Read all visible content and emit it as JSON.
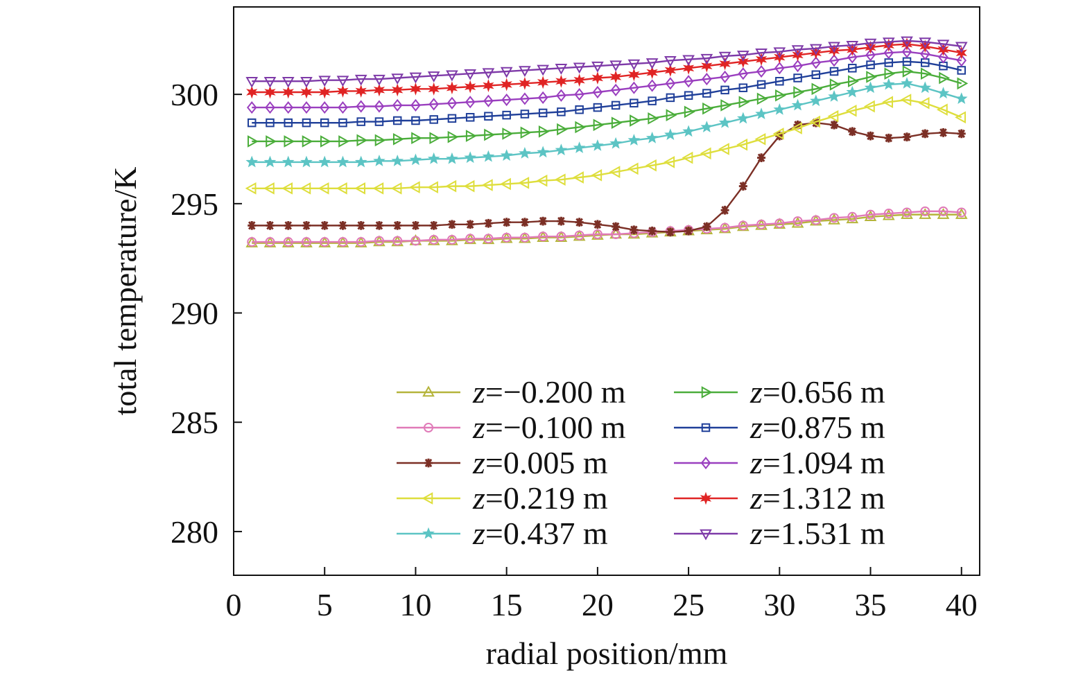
{
  "chart_data": {
    "type": "line",
    "title": "",
    "xlabel": "radial position/mm",
    "ylabel": "total temperature/K",
    "xlim": [
      0,
      41
    ],
    "ylim": [
      278,
      304
    ],
    "x_ticks": [
      0,
      5,
      10,
      15,
      20,
      25,
      30,
      35,
      40
    ],
    "y_ticks": [
      280,
      285,
      290,
      295,
      300
    ],
    "grid": false,
    "legend_position": "bottom-right, two columns",
    "x": [
      1,
      2,
      3,
      4,
      5,
      6,
      7,
      8,
      9,
      10,
      11,
      12,
      13,
      14,
      15,
      16,
      17,
      18,
      19,
      20,
      21,
      22,
      23,
      24,
      25,
      26,
      27,
      28,
      29,
      30,
      31,
      32,
      33,
      34,
      35,
      36,
      37,
      38,
      39,
      40
    ],
    "series": [
      {
        "name": "z=−0.200 m",
        "name_var": "z",
        "name_value": "=−0.200 m",
        "color": "#b5b43a",
        "marker": "triangle-up",
        "values": [
          293.2,
          293.2,
          293.2,
          293.2,
          293.2,
          293.2,
          293.2,
          293.25,
          293.25,
          293.3,
          293.3,
          293.3,
          293.35,
          293.35,
          293.4,
          293.4,
          293.45,
          293.45,
          293.5,
          293.55,
          293.6,
          293.6,
          293.65,
          293.7,
          293.75,
          293.8,
          293.85,
          293.95,
          294.0,
          294.05,
          294.1,
          294.2,
          294.25,
          294.3,
          294.4,
          294.45,
          294.5,
          294.5,
          294.5,
          294.5
        ]
      },
      {
        "name": "z=−0.100 m",
        "name_var": "z",
        "name_value": "=−0.100 m",
        "color": "#e07ab8",
        "marker": "circle",
        "values": [
          293.25,
          293.25,
          293.25,
          293.25,
          293.25,
          293.25,
          293.25,
          293.3,
          293.3,
          293.3,
          293.35,
          293.35,
          293.4,
          293.4,
          293.45,
          293.45,
          293.5,
          293.5,
          293.55,
          293.6,
          293.6,
          293.65,
          293.7,
          293.75,
          293.8,
          293.85,
          293.9,
          294.0,
          294.05,
          294.1,
          294.2,
          294.25,
          294.35,
          294.4,
          294.5,
          294.55,
          294.6,
          294.65,
          294.65,
          294.6
        ]
      },
      {
        "name": "z=0.005 m",
        "name_var": "z",
        "name_value": "=0.005 m",
        "color": "#7b2f25",
        "marker": "asterisk",
        "values": [
          294.0,
          294.0,
          294.0,
          294.0,
          294.0,
          294.0,
          294.0,
          294.0,
          294.0,
          294.0,
          294.0,
          294.05,
          294.05,
          294.1,
          294.15,
          294.15,
          294.2,
          294.2,
          294.15,
          294.05,
          293.95,
          293.8,
          293.75,
          293.7,
          293.75,
          293.95,
          294.7,
          295.8,
          297.1,
          298.1,
          298.6,
          298.7,
          298.6,
          298.3,
          298.1,
          298.0,
          298.05,
          298.2,
          298.25,
          298.2
        ]
      },
      {
        "name": "z=0.219 m",
        "name_var": "z",
        "name_value": "=0.219 m",
        "color": "#dede3c",
        "marker": "triangle-left",
        "values": [
          295.7,
          295.7,
          295.7,
          295.7,
          295.7,
          295.7,
          295.7,
          295.7,
          295.7,
          295.75,
          295.75,
          295.8,
          295.8,
          295.85,
          295.9,
          295.95,
          296.05,
          296.1,
          296.2,
          296.3,
          296.45,
          296.6,
          296.75,
          296.9,
          297.1,
          297.3,
          297.5,
          297.7,
          297.95,
          298.2,
          298.45,
          298.75,
          299.0,
          299.25,
          299.45,
          299.65,
          299.75,
          299.6,
          299.3,
          298.95
        ]
      },
      {
        "name": "z=0.437 m",
        "name_var": "z",
        "name_value": "=0.437 m",
        "color": "#5cc4c4",
        "marker": "star",
        "values": [
          296.9,
          296.9,
          296.9,
          296.9,
          296.9,
          296.9,
          296.9,
          296.95,
          296.95,
          297.0,
          297.05,
          297.05,
          297.1,
          297.15,
          297.2,
          297.3,
          297.35,
          297.45,
          297.55,
          297.65,
          297.75,
          297.9,
          298.0,
          298.15,
          298.3,
          298.5,
          298.7,
          298.9,
          299.1,
          299.3,
          299.5,
          299.7,
          299.9,
          300.1,
          300.3,
          300.45,
          300.5,
          300.3,
          300.05,
          299.8
        ]
      },
      {
        "name": "z=0.656 m",
        "name_var": "z",
        "name_value": "=0.656 m",
        "color": "#4aad3a",
        "marker": "triangle-right",
        "values": [
          297.85,
          297.85,
          297.85,
          297.85,
          297.85,
          297.85,
          297.9,
          297.9,
          297.95,
          298.0,
          298.0,
          298.05,
          298.1,
          298.15,
          298.2,
          298.25,
          298.3,
          298.4,
          298.5,
          298.6,
          298.7,
          298.8,
          298.9,
          299.05,
          299.2,
          299.35,
          299.5,
          299.65,
          299.8,
          299.95,
          300.1,
          300.25,
          300.45,
          300.6,
          300.8,
          300.95,
          301.05,
          300.95,
          300.75,
          300.5
        ]
      },
      {
        "name": "z=0.875 m",
        "name_var": "z",
        "name_value": "=0.875 m",
        "color": "#1f3f99",
        "marker": "square",
        "values": [
          298.7,
          298.7,
          298.7,
          298.7,
          298.7,
          298.7,
          298.75,
          298.75,
          298.8,
          298.8,
          298.85,
          298.9,
          298.95,
          299.0,
          299.05,
          299.1,
          299.15,
          299.2,
          299.3,
          299.4,
          299.5,
          299.6,
          299.7,
          299.85,
          299.95,
          300.05,
          300.2,
          300.3,
          300.45,
          300.6,
          300.75,
          300.9,
          301.05,
          301.2,
          301.35,
          301.45,
          301.5,
          301.45,
          301.3,
          301.1
        ]
      },
      {
        "name": "z=1.094 m",
        "name_var": "z",
        "name_value": "=1.094 m",
        "color": "#9a3fbf",
        "marker": "diamond",
        "values": [
          299.4,
          299.4,
          299.4,
          299.4,
          299.4,
          299.4,
          299.45,
          299.45,
          299.5,
          299.5,
          299.55,
          299.6,
          299.65,
          299.7,
          299.75,
          299.8,
          299.85,
          299.95,
          300.0,
          300.1,
          300.2,
          300.3,
          300.4,
          300.5,
          300.6,
          300.7,
          300.8,
          300.95,
          301.05,
          301.2,
          301.3,
          301.45,
          301.55,
          301.7,
          301.8,
          301.9,
          301.95,
          301.85,
          301.7,
          301.55
        ]
      },
      {
        "name": "z=1.312 m",
        "name_var": "z",
        "name_value": "=1.312 m",
        "color": "#e02424",
        "marker": "star6",
        "values": [
          300.1,
          300.1,
          300.1,
          300.1,
          300.1,
          300.15,
          300.15,
          300.2,
          300.2,
          300.25,
          300.25,
          300.3,
          300.35,
          300.4,
          300.45,
          300.5,
          300.55,
          300.6,
          300.65,
          300.75,
          300.8,
          300.9,
          301.0,
          301.1,
          301.2,
          301.3,
          301.4,
          301.5,
          301.6,
          301.7,
          301.8,
          301.9,
          302.0,
          302.05,
          302.15,
          302.25,
          302.3,
          302.2,
          302.05,
          301.9
        ]
      },
      {
        "name": "z=1.531 m",
        "name_var": "z",
        "name_value": "=1.531 m",
        "color": "#7e3aa8",
        "marker": "triangle-down",
        "values": [
          300.6,
          300.6,
          300.6,
          300.6,
          300.65,
          300.65,
          300.7,
          300.7,
          300.75,
          300.8,
          300.85,
          300.9,
          300.95,
          301.0,
          301.05,
          301.1,
          301.15,
          301.2,
          301.25,
          301.3,
          301.35,
          301.4,
          301.45,
          301.55,
          301.6,
          301.65,
          301.75,
          301.8,
          301.9,
          301.95,
          302.05,
          302.1,
          302.2,
          302.25,
          302.35,
          302.4,
          302.45,
          302.4,
          302.3,
          302.2
        ]
      }
    ]
  }
}
